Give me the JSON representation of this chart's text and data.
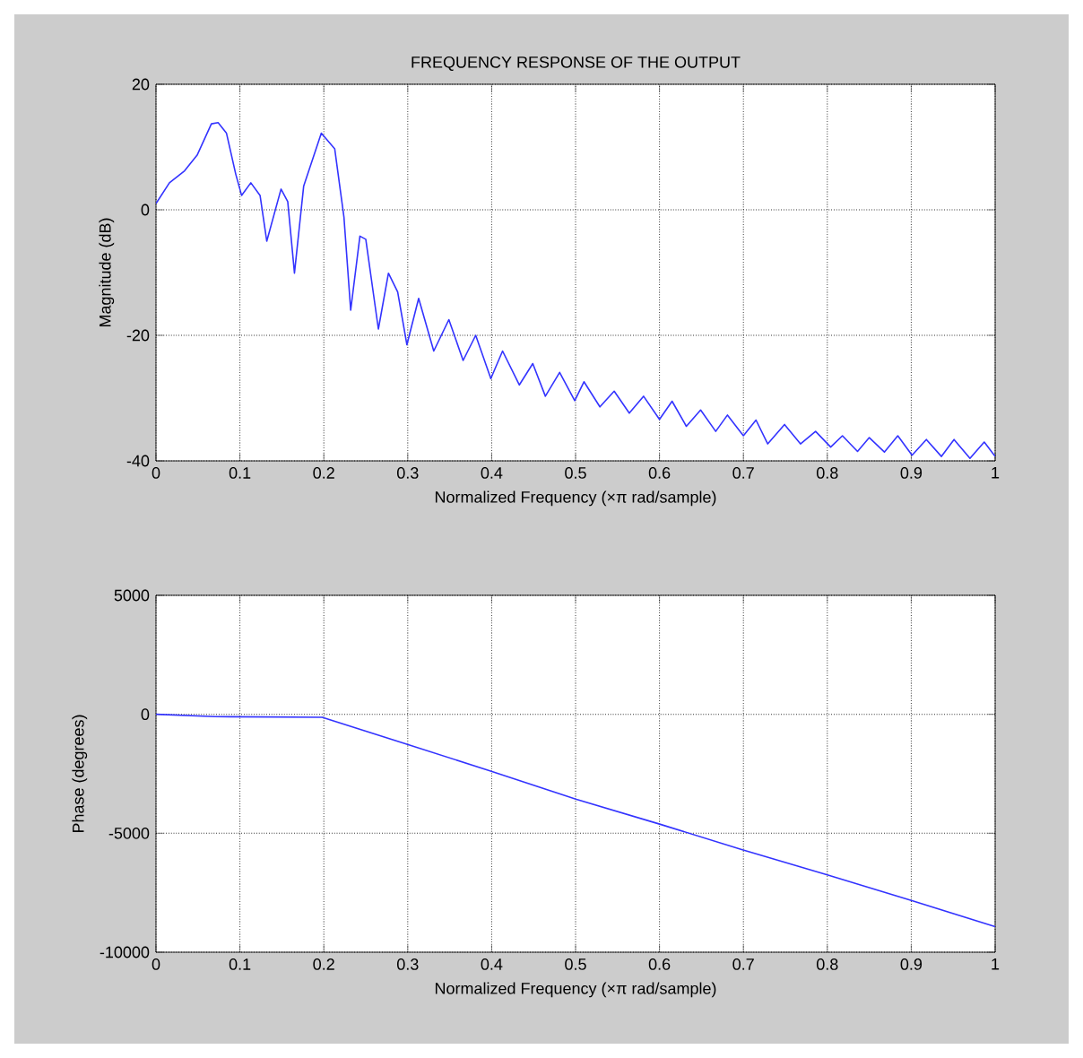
{
  "chart_data": [
    {
      "type": "line",
      "title": "FREQUENCY RESPONSE OF THE OUTPUT",
      "xlabel": "Normalized Frequency  (×π rad/sample)",
      "ylabel": "Magnitude (dB)",
      "color": "#3333ff",
      "grid": true,
      "xlim": [
        0,
        1
      ],
      "ylim": [
        -40,
        20
      ],
      "xticks": [
        0,
        0.1,
        0.2,
        0.3,
        0.4,
        0.5,
        0.6,
        0.7,
        0.8,
        0.9,
        1
      ],
      "yticks": [
        -40,
        -20,
        0,
        20
      ],
      "x": [
        0,
        0.016,
        0.034,
        0.049,
        0.066,
        0.074,
        0.084,
        0.095,
        0.102,
        0.113,
        0.124,
        0.132,
        0.149,
        0.157,
        0.165,
        0.176,
        0.197,
        0.213,
        0.224,
        0.232,
        0.243,
        0.25,
        0.265,
        0.277,
        0.288,
        0.299,
        0.313,
        0.331,
        0.349,
        0.366,
        0.381,
        0.399,
        0.413,
        0.433,
        0.449,
        0.464,
        0.481,
        0.499,
        0.51,
        0.529,
        0.546,
        0.564,
        0.581,
        0.6,
        0.615,
        0.632,
        0.649,
        0.667,
        0.681,
        0.7,
        0.715,
        0.729,
        0.749,
        0.768,
        0.786,
        0.804,
        0.818,
        0.836,
        0.85,
        0.868,
        0.884,
        0.901,
        0.918,
        0.936,
        0.951,
        0.97,
        0.987,
        1
      ],
      "values": [
        1,
        4.3,
        6.2,
        8.7,
        13.7,
        13.9,
        12.2,
        5.7,
        2.3,
        4.3,
        2.3,
        -5,
        3.3,
        1.3,
        -10.1,
        3.8,
        12.2,
        9.7,
        -1.2,
        -16,
        -4.2,
        -4.7,
        -19,
        -10.1,
        -13.1,
        -21.5,
        -14.1,
        -22.5,
        -17.5,
        -24,
        -20,
        -26.9,
        -22.5,
        -27.9,
        -24.5,
        -29.7,
        -25.9,
        -30.4,
        -27.4,
        -31.4,
        -28.9,
        -32.4,
        -29.7,
        -33.4,
        -30.5,
        -34.5,
        -31.9,
        -35.3,
        -32.7,
        -36,
        -33.5,
        -37.3,
        -34.2,
        -37.3,
        -35.3,
        -37.8,
        -36,
        -38.5,
        -36.3,
        -38.6,
        -36,
        -39.1,
        -36.6,
        -39.3,
        -36.6,
        -39.6,
        -37,
        -39.3
      ]
    },
    {
      "type": "line",
      "xlabel": "Normalized Frequency  (×π rad/sample)",
      "ylabel": "Phase (degrees)",
      "color": "#3333ff",
      "grid": true,
      "xlim": [
        0,
        1
      ],
      "ylim": [
        -10000,
        5000
      ],
      "xticks": [
        0,
        0.1,
        0.2,
        0.3,
        0.4,
        0.5,
        0.6,
        0.7,
        0.8,
        0.9,
        1
      ],
      "yticks": [
        -10000,
        -5000,
        0,
        5000
      ],
      "x": [
        0,
        0.07,
        0.198,
        0.298,
        0.398,
        0.501,
        0.601,
        0.697,
        0.8,
        0.9,
        1
      ],
      "values": [
        0,
        -100,
        -125,
        -1250,
        -2375,
        -3575,
        -4625,
        -5675,
        -6750,
        -7825,
        -8925
      ]
    }
  ]
}
